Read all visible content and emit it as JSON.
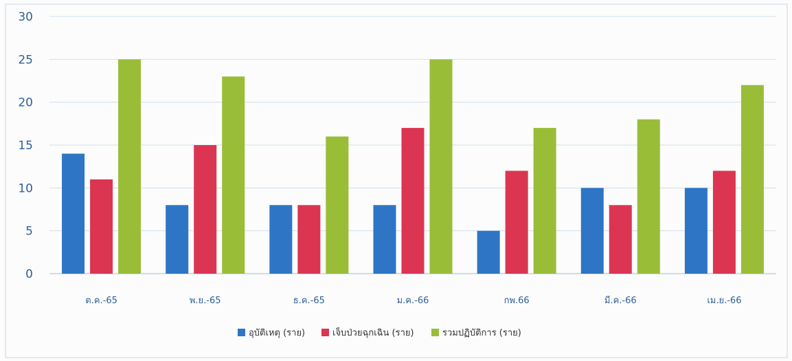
{
  "chart_data": {
    "type": "bar",
    "categories": [
      "ต.ค.-65",
      "พ.ย.-65",
      "ธ.ค.-65",
      "ม.ค.-66",
      "กพ.66",
      "มี.ค.-66",
      "เม.ย.-66"
    ],
    "series": [
      {
        "name": "อุบัติเหตุ (ราย)",
        "color": "#2e75c6",
        "values": [
          14,
          8,
          8,
          8,
          5,
          10,
          10
        ]
      },
      {
        "name": "เจ็บป่วยฉุกเฉิน (ราย)",
        "color": "#db3552",
        "values": [
          11,
          15,
          8,
          17,
          12,
          8,
          12
        ]
      },
      {
        "name": "รวมปฏิบัติการ (ราย)",
        "color": "#99bd37",
        "values": [
          25,
          23,
          16,
          25,
          17,
          18,
          22
        ]
      }
    ],
    "ylim": [
      0,
      30
    ],
    "yticks": [
      "0",
      "5",
      "10",
      "15",
      "20",
      "25",
      "30"
    ],
    "grid": true,
    "legend_position": "bottom"
  }
}
